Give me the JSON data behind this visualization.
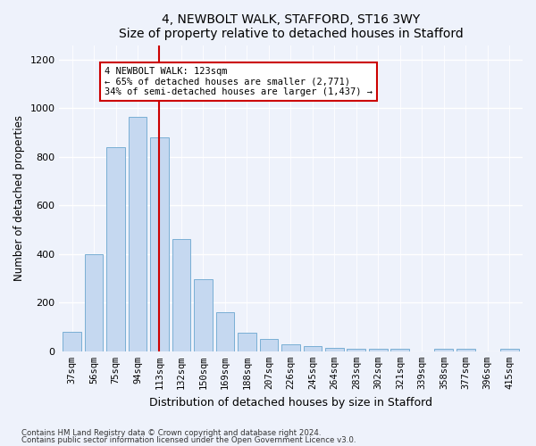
{
  "title1": "4, NEWBOLT WALK, STAFFORD, ST16 3WY",
  "title2": "Size of property relative to detached houses in Stafford",
  "xlabel": "Distribution of detached houses by size in Stafford",
  "ylabel": "Number of detached properties",
  "categories": [
    "37sqm",
    "56sqm",
    "75sqm",
    "94sqm",
    "113sqm",
    "132sqm",
    "150sqm",
    "169sqm",
    "188sqm",
    "207sqm",
    "226sqm",
    "245sqm",
    "264sqm",
    "283sqm",
    "302sqm",
    "321sqm",
    "339sqm",
    "358sqm",
    "377sqm",
    "396sqm",
    "415sqm"
  ],
  "values": [
    80,
    400,
    840,
    965,
    880,
    460,
    295,
    160,
    75,
    52,
    30,
    20,
    15,
    10,
    10,
    10,
    0,
    10,
    10,
    0,
    10
  ],
  "bar_color": "#c5d8f0",
  "bar_edge_color": "#7aafd4",
  "bar_width": 0.85,
  "vline_x_index": 4,
  "vline_color": "#cc0000",
  "annotation_text": "4 NEWBOLT WALK: 123sqm\n← 65% of detached houses are smaller (2,771)\n34% of semi-detached houses are larger (1,437) →",
  "annotation_box_color": "#ffffff",
  "annotation_box_edge_color": "#cc0000",
  "ylim": [
    0,
    1260
  ],
  "yticks": [
    0,
    200,
    400,
    600,
    800,
    1000,
    1200
  ],
  "footnote1": "Contains HM Land Registry data © Crown copyright and database right 2024.",
  "footnote2": "Contains public sector information licensed under the Open Government Licence v3.0.",
  "bg_color": "#eef2fb",
  "plot_bg_color": "#eef2fb"
}
